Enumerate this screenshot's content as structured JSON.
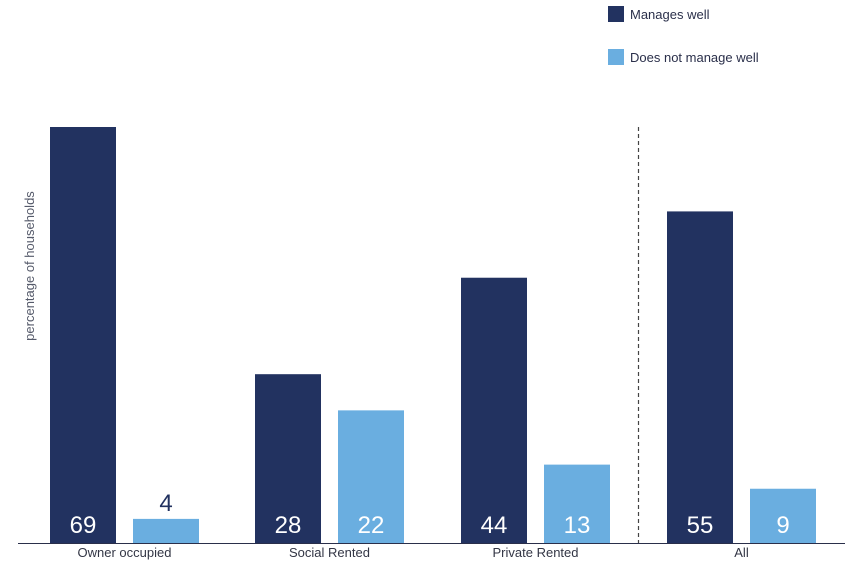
{
  "chart_data": {
    "type": "bar",
    "categories": [
      "Owner occupied",
      "Social Rented",
      "Private Rented",
      "All"
    ],
    "series": [
      {
        "name": "Manages well",
        "values": [
          69,
          28,
          44,
          55
        ],
        "color": "#223260"
      },
      {
        "name": "Does not manage well",
        "values": [
          4,
          22,
          13,
          9
        ],
        "color": "#6aaee0"
      }
    ],
    "ylabel": "percentage of households",
    "ylim": [
      0,
      69
    ],
    "grid": false,
    "legend": "top-right",
    "separator_before_category": "All"
  }
}
